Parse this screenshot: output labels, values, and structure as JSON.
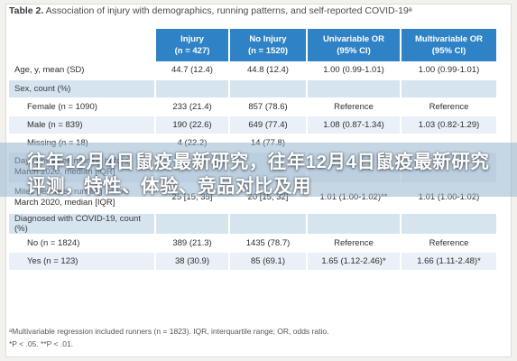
{
  "caption": {
    "label": "Table 2.",
    "text": "Association of injury with demographics, running patterns, and self-reported COVID-19ᵃ"
  },
  "columns": [
    "",
    "Injury\n(n = 427)",
    "No Injury\n(n = 1520)",
    "Univariable OR\n(95% CI)",
    "Multivariable OR\n(95% CI)"
  ],
  "rows": [
    {
      "style": "odd",
      "indent": false,
      "cells": [
        "Age, y, mean (SD)",
        "44.7 (12.4)",
        "44.8 (12.4)",
        "1.00 (0.99-1.01)",
        "1.00 (0.99-1.01)"
      ]
    },
    {
      "style": "section",
      "indent": false,
      "cells": [
        "Sex, count (%)",
        "",
        "",
        "",
        ""
      ]
    },
    {
      "style": "odd",
      "indent": true,
      "cells": [
        "Female (n = 1090)",
        "233 (21.4)",
        "857 (78.6)",
        "Reference",
        "Reference"
      ]
    },
    {
      "style": "even",
      "indent": true,
      "cells": [
        "Male (n = 839)",
        "190 (22.6)",
        "649 (77.4)",
        "1.08 (0.87-1.34)",
        "1.03 (0.82-1.29)"
      ]
    },
    {
      "style": "odd",
      "indent": true,
      "cells": [
        "Missing (n = 18)",
        "4 (22.2)",
        "14 (77.8)",
        "",
        ""
      ]
    },
    {
      "style": "even tall",
      "indent": false,
      "cells": [
        "Days per week running before March 2020, median [IQR]",
        "",
        "",
        "",
        ""
      ]
    },
    {
      "style": "odd tall",
      "indent": false,
      "cells": [
        "Miles per week running before March 2020, median [IQR]",
        "25 [15, 35]",
        "20 [15, 32]",
        "1.01 (1.00-1.02)**",
        "1.01 (1.00-1.02)"
      ]
    },
    {
      "style": "section",
      "indent": false,
      "cells": [
        "Diagnosed with COVID-19, count (%)",
        "",
        "",
        "",
        ""
      ]
    },
    {
      "style": "odd",
      "indent": true,
      "cells": [
        "No (n = 1824)",
        "389 (21.3)",
        "1435 (78.7)",
        "Reference",
        "Reference"
      ]
    },
    {
      "style": "even",
      "indent": true,
      "cells": [
        "Yes (n = 123)",
        "38 (30.9)",
        "85 (69.1)",
        "1.65 (1.12-2.46)*",
        "1.66 (1.11-2.48)*"
      ]
    }
  ],
  "footnotes": [
    "ᵃMultivariable regression included runners (n = 1823). IQR, interquartile range; OR, odds ratio.",
    "*P < .05. **P < .01."
  ],
  "banner": {
    "text": "往年12月4日鼠疫最新研究，往年12月4日鼠疫最新研究评测，特性、体验、竞品对比及用"
  }
}
